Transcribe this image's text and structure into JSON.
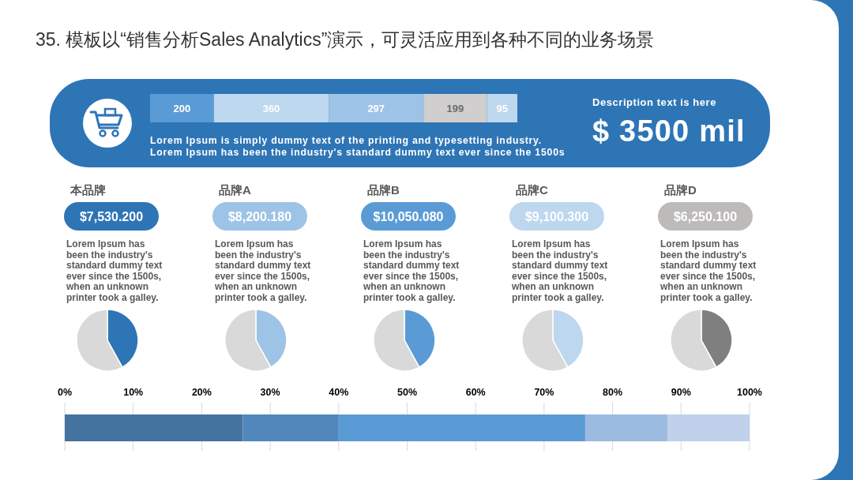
{
  "chart_data": [
    {
      "type": "bar",
      "orientation": "horizontal",
      "stacked": true,
      "data_labels": true,
      "title": "35. 模板以“销售分析Sales Analytics”演示，可灵活应用到各种不同的业务场景",
      "annotations": [
        "Lorem Ipsum is simply dummy text of the printing and typesetting industry.",
        "Lorem Ipsum has been the industry's standard dummy text ever since the 1500s",
        "Description text is here",
        "$ 3500 mil"
      ],
      "categories": [
        null
      ],
      "series": [
        {
          "color": "#5b9bd5",
          "values": [
            200
          ]
        },
        {
          "color": "#bdd7ee",
          "values": [
            360
          ]
        },
        {
          "color": "#9dc3e6",
          "values": [
            297
          ]
        },
        {
          "color": "#d0cece",
          "values": [
            199
          ]
        },
        {
          "color": "#bdd7ee",
          "values": [
            95
          ]
        }
      ]
    },
    {
      "type": "pie",
      "title": "本品牌",
      "subtitle": "$7,530.200",
      "annotations": [
        "Lorem Ipsum has been the industry's standard dummy text ever since the 1500s, when an unknown printer took a galley."
      ],
      "categories": [
        null,
        null
      ],
      "values": [
        42,
        58
      ],
      "colors": [
        "#2e75b6",
        "#d9d9d9"
      ]
    },
    {
      "type": "pie",
      "title": "品牌A",
      "subtitle": "$8,200.180",
      "annotations": [
        "Lorem Ipsum has been the industry's standard dummy text ever since the 1500s, when an unknown printer took a galley."
      ],
      "categories": [
        null,
        null
      ],
      "values": [
        42,
        58
      ],
      "colors": [
        "#9dc3e6",
        "#d9d9d9"
      ]
    },
    {
      "type": "pie",
      "title": "品牌B",
      "subtitle": "$10,050.080",
      "annotations": [
        "Lorem Ipsum has been the industry's standard dummy text ever since the 1500s, when an unknown printer took a galley."
      ],
      "categories": [
        null,
        null
      ],
      "values": [
        42,
        58
      ],
      "colors": [
        "#5b9bd5",
        "#d9d9d9"
      ]
    },
    {
      "type": "pie",
      "title": "品牌C",
      "subtitle": "$9,100.300",
      "annotations": [
        "Lorem Ipsum has been the industry's standard dummy text ever since the 1500s, when an unknown printer took a galley."
      ],
      "categories": [
        null,
        null
      ],
      "values": [
        42,
        58
      ],
      "colors": [
        "#bdd7ee",
        "#d9d9d9"
      ]
    },
    {
      "type": "pie",
      "title": "品牌D",
      "subtitle": "$6,250.100",
      "annotations": [
        "Lorem Ipsum has been the industry's standard dummy text ever since the 1500s, when an unknown printer took a galley."
      ],
      "categories": [
        null,
        null
      ],
      "values": [
        42,
        58
      ],
      "colors": [
        "#7f7f7f",
        "#d9d9d9"
      ]
    },
    {
      "type": "bar",
      "orientation": "horizontal",
      "stacked": true,
      "categories": [
        null
      ],
      "x2lim": [
        0,
        100
      ],
      "x2ticks": [
        {
          "value": 0,
          "label": "0%"
        },
        {
          "value": 10,
          "label": "10%"
        },
        {
          "value": 20,
          "label": "20%"
        },
        {
          "value": 30,
          "label": "30%"
        },
        {
          "value": 40,
          "label": "40%"
        },
        {
          "value": 50,
          "label": "50%"
        },
        {
          "value": 60,
          "label": "60%"
        },
        {
          "value": 70,
          "label": "70%"
        },
        {
          "value": 80,
          "label": "80%"
        },
        {
          "value": 90,
          "label": "90%"
        },
        {
          "value": 100,
          "label": "100%"
        }
      ],
      "grid": "x",
      "series": [
        {
          "color": "#44739f",
          "axis": "x2",
          "values": [
            26
          ]
        },
        {
          "color": "#5088bc",
          "axis": "x2",
          "values": [
            14
          ]
        },
        {
          "color": "#5b9bd5",
          "axis": "x2",
          "values": [
            36
          ]
        },
        {
          "color": "#9bbae0",
          "axis": "x2",
          "values": [
            12
          ]
        },
        {
          "color": "#bfd1eb",
          "axis": "x2",
          "values": [
            12
          ]
        }
      ]
    }
  ]
}
